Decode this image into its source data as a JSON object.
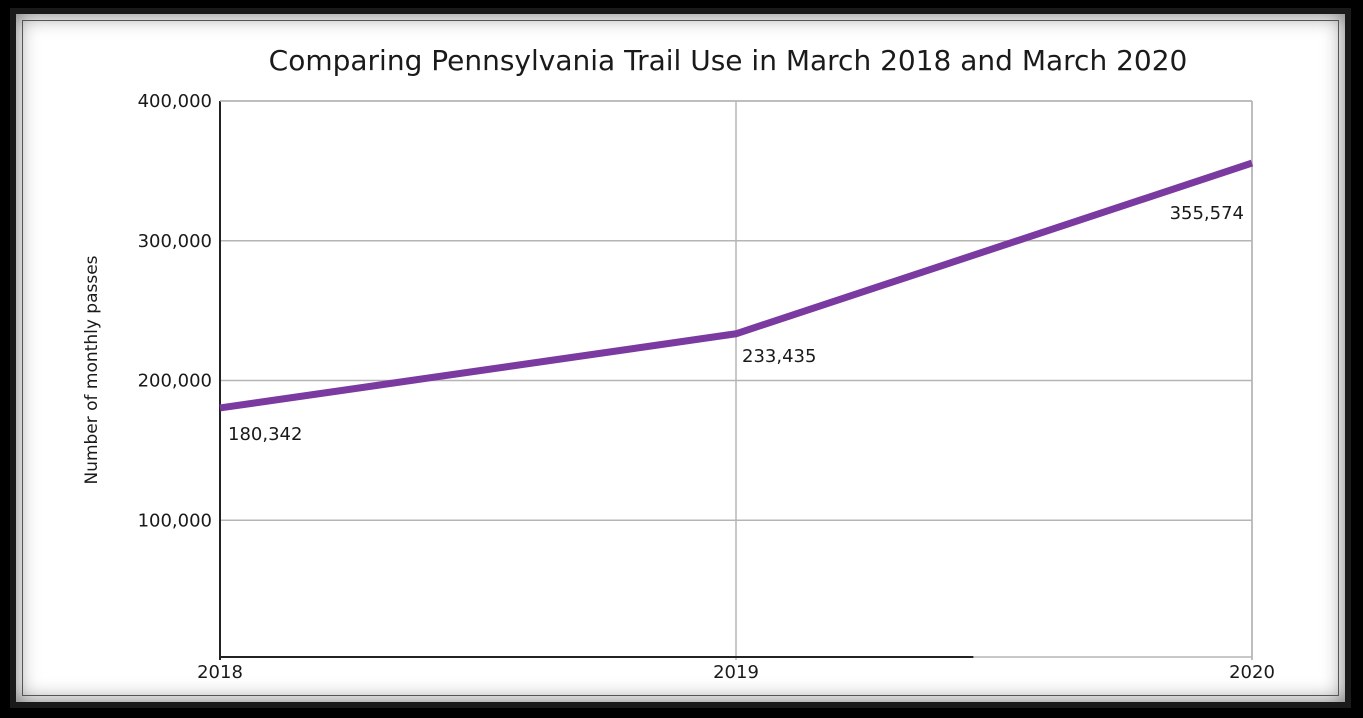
{
  "chart_data": {
    "type": "line",
    "title": "Comparing Pennsylvania Trail Use in March 2018 and March 2020",
    "xlabel": "",
    "ylabel": "Number of monthly passes",
    "x": [
      "2018",
      "2019",
      "2020"
    ],
    "y_ticks": [
      "100,000",
      "200,000",
      "300,000",
      "400,000"
    ],
    "y_tick_values": [
      100000,
      200000,
      300000,
      400000
    ],
    "ylim": [
      0,
      400000
    ],
    "grid": true,
    "series": [
      {
        "values": [
          180342,
          233435,
          355574
        ],
        "labels": [
          "180,342",
          "233,435",
          "355,574"
        ],
        "color": "#7b3aa0"
      }
    ]
  }
}
